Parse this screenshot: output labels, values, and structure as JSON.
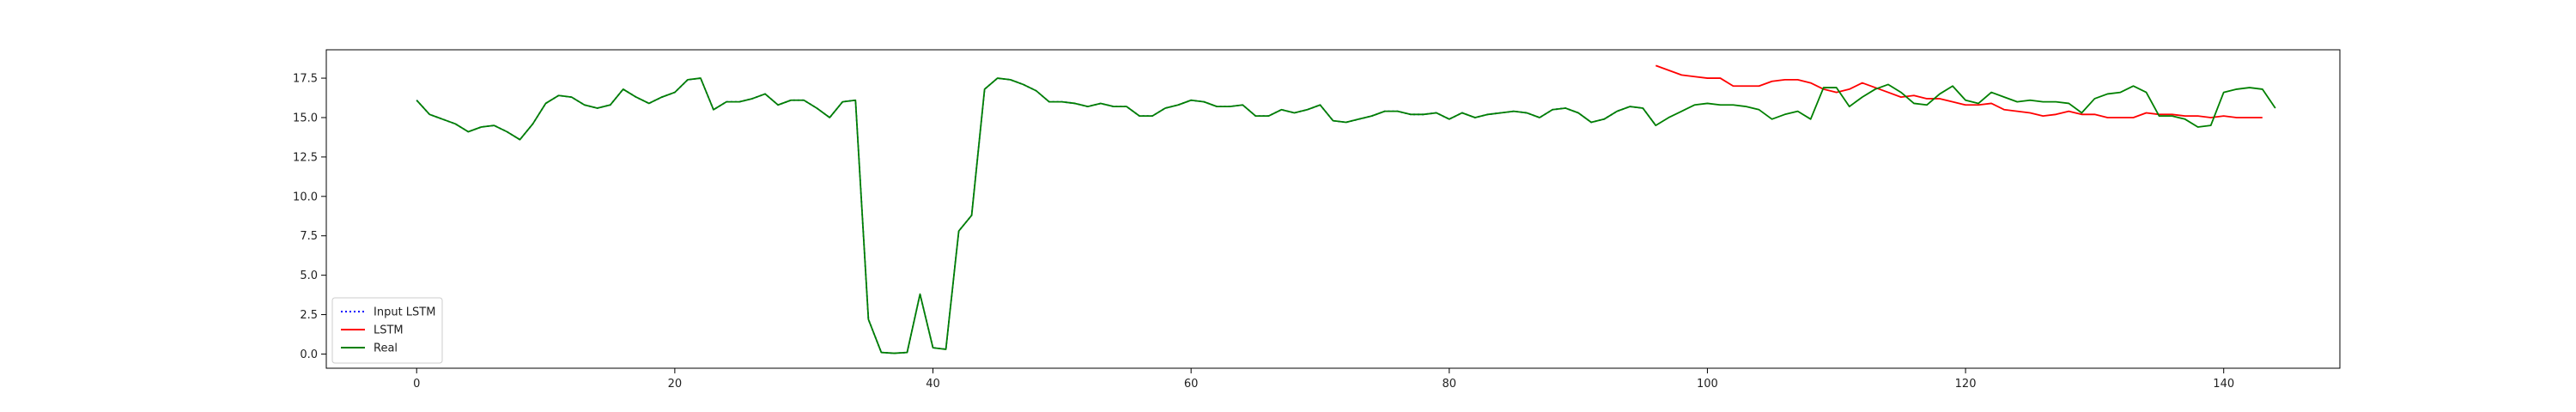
{
  "chart_data": {
    "type": "line",
    "title": "",
    "xlabel": "",
    "ylabel": "",
    "xlim": [
      -7,
      149
    ],
    "ylim": [
      -0.9,
      19.3
    ],
    "x_ticks": [
      0,
      20,
      40,
      60,
      80,
      100,
      120,
      140
    ],
    "x_tick_labels": [
      "0",
      "20",
      "40",
      "60",
      "80",
      "100",
      "120",
      "140"
    ],
    "y_ticks": [
      0.0,
      2.5,
      5.0,
      7.5,
      10.0,
      12.5,
      15.0,
      17.5
    ],
    "y_tick_labels": [
      "0.0",
      "2.5",
      "5.0",
      "7.5",
      "10.0",
      "12.5",
      "15.0",
      "17.5"
    ],
    "grid": false,
    "legend_position": "lower-left",
    "series": [
      {
        "name": "Input LSTM",
        "color": "#0000ff",
        "style": "dotted",
        "x_start": 0,
        "values": [
          16.1,
          15.2,
          14.9,
          14.6,
          14.1,
          14.4,
          14.5,
          14.1,
          13.6,
          14.6,
          15.9,
          16.4,
          16.3,
          15.8,
          15.6,
          15.8,
          16.8,
          16.3,
          15.9,
          16.3,
          16.6,
          17.4,
          17.5,
          15.5,
          16.0,
          16.0,
          16.2,
          16.5,
          15.8,
          16.1,
          16.1,
          15.6,
          15.0,
          16.0,
          16.1,
          2.2,
          0.1,
          0.05,
          0.1,
          3.8,
          0.4,
          0.3,
          7.8,
          8.8,
          16.8,
          17.5,
          17.4,
          17.1,
          16.7,
          16.0,
          16.0,
          15.9,
          15.7,
          15.9,
          15.7,
          15.7,
          15.1,
          15.1,
          15.6,
          15.8,
          16.1,
          16.0,
          15.7,
          15.7,
          15.8,
          15.1,
          15.1,
          15.5,
          15.3,
          15.5,
          15.8,
          14.8,
          14.7,
          14.9,
          15.1,
          15.4,
          15.4,
          15.2,
          15.2,
          15.3,
          14.9,
          15.3,
          15.0,
          15.2,
          15.3,
          15.4,
          15.3,
          15.0,
          15.5,
          15.6,
          15.3,
          14.7,
          14.9,
          15.4,
          15.7,
          15.6,
          14.5
        ]
      },
      {
        "name": "LSTM",
        "color": "#ff0000",
        "style": "solid",
        "x_start": 96,
        "values": [
          18.3,
          18.0,
          17.7,
          17.6,
          17.5,
          17.5,
          17.0,
          17.0,
          17.0,
          17.3,
          17.4,
          17.4,
          17.2,
          16.8,
          16.6,
          16.8,
          17.2,
          16.9,
          16.6,
          16.3,
          16.4,
          16.2,
          16.2,
          16.0,
          15.8,
          15.8,
          15.9,
          15.5,
          15.4,
          15.3,
          15.1,
          15.2,
          15.4,
          15.2,
          15.2,
          15.0,
          15.0,
          15.0,
          15.3,
          15.2,
          15.2,
          15.1,
          15.1,
          15.0,
          15.1,
          15.0,
          15.0,
          15.0
        ]
      },
      {
        "name": "Real",
        "color": "#008000",
        "style": "solid",
        "x_start": 0,
        "values": [
          16.1,
          15.2,
          14.9,
          14.6,
          14.1,
          14.4,
          14.5,
          14.1,
          13.6,
          14.6,
          15.9,
          16.4,
          16.3,
          15.8,
          15.6,
          15.8,
          16.8,
          16.3,
          15.9,
          16.3,
          16.6,
          17.4,
          17.5,
          15.5,
          16.0,
          16.0,
          16.2,
          16.5,
          15.8,
          16.1,
          16.1,
          15.6,
          15.0,
          16.0,
          16.1,
          2.2,
          0.1,
          0.05,
          0.1,
          3.8,
          0.4,
          0.3,
          7.8,
          8.8,
          16.8,
          17.5,
          17.4,
          17.1,
          16.7,
          16.0,
          16.0,
          15.9,
          15.7,
          15.9,
          15.7,
          15.7,
          15.1,
          15.1,
          15.6,
          15.8,
          16.1,
          16.0,
          15.7,
          15.7,
          15.8,
          15.1,
          15.1,
          15.5,
          15.3,
          15.5,
          15.8,
          14.8,
          14.7,
          14.9,
          15.1,
          15.4,
          15.4,
          15.2,
          15.2,
          15.3,
          14.9,
          15.3,
          15.0,
          15.2,
          15.3,
          15.4,
          15.3,
          15.0,
          15.5,
          15.6,
          15.3,
          14.7,
          14.9,
          15.4,
          15.7,
          15.6,
          14.5,
          15.0,
          15.4,
          15.8,
          15.9,
          15.8,
          15.8,
          15.7,
          15.5,
          14.9,
          15.2,
          15.4,
          14.9,
          16.9,
          16.9,
          15.7,
          16.3,
          16.8,
          17.1,
          16.6,
          15.9,
          15.8,
          16.5,
          17.0,
          16.1,
          15.9,
          16.6,
          16.3,
          16.0,
          16.1,
          16.0,
          16.0,
          15.9,
          15.3,
          16.2,
          16.5,
          16.6,
          17.0,
          16.6,
          15.1,
          15.1,
          14.9,
          14.4,
          14.5,
          16.6,
          16.8,
          16.9,
          16.8,
          15.6
        ]
      }
    ]
  }
}
